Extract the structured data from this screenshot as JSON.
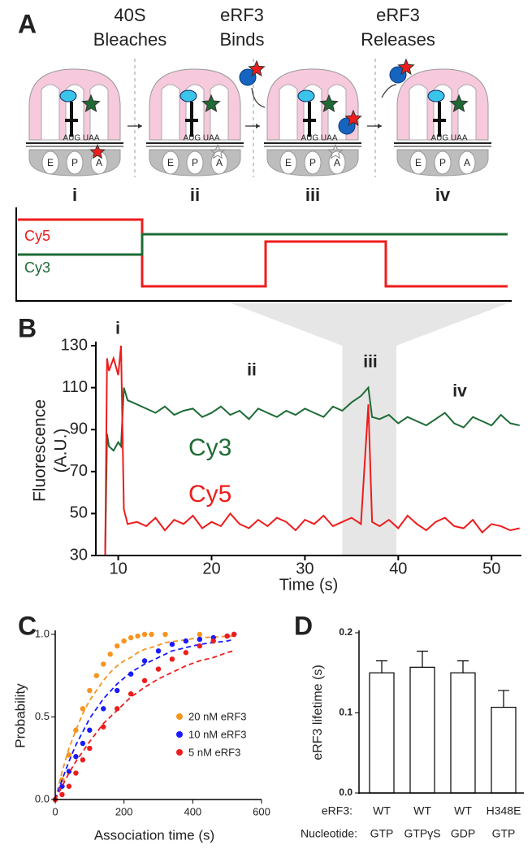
{
  "panel_labels": [
    "A",
    "B",
    "C",
    "D"
  ],
  "schematic": {
    "steps": [
      [
        "40S",
        "Bleaches"
      ],
      [
        "eRF3",
        "Binds"
      ],
      [
        "eRF3",
        "Releases"
      ]
    ],
    "states": [
      "i",
      "ii",
      "iii",
      "iv"
    ],
    "sites": [
      "E",
      "P",
      "A"
    ],
    "codons": "AUG UAA",
    "traces": [
      "Cy5",
      "Cy3"
    ]
  },
  "chart_data": [
    {
      "type": "line",
      "xlabel": "Time (s)",
      "ylabel": [
        "Fluorescence",
        "(A.U.)"
      ],
      "x": [
        8.6,
        8.8,
        9,
        9.5,
        10,
        10.3,
        10.6,
        11,
        12,
        13,
        14,
        15,
        16,
        17,
        18,
        19,
        20,
        21,
        22,
        23,
        24,
        25,
        26,
        27,
        28,
        29,
        30,
        31,
        32,
        33,
        34,
        35,
        36,
        36.8,
        37.2,
        38,
        39,
        40,
        41,
        42,
        43,
        44,
        45,
        46,
        47,
        48,
        49,
        50,
        51,
        52,
        53
      ],
      "series": [
        {
          "name": "Cy3",
          "color": "#1e6b35",
          "values": [
            30,
            88,
            82,
            80,
            84,
            82,
            110,
            104,
            102,
            100,
            98,
            101,
            97,
            99,
            100,
            96,
            98,
            101,
            97,
            99,
            95,
            100,
            98,
            96,
            99,
            97,
            100,
            98,
            96,
            101,
            99,
            103,
            106,
            110,
            96,
            95,
            97,
            93,
            96,
            94,
            92,
            95,
            98,
            93,
            91,
            96,
            94,
            92,
            97,
            93,
            92
          ]
        },
        {
          "name": "Cy5",
          "color": "#ee1c1c",
          "values": [
            30,
            124,
            118,
            124,
            116,
            130,
            52,
            45,
            46,
            44,
            48,
            42,
            47,
            45,
            49,
            43,
            46,
            44,
            50,
            45,
            43,
            47,
            44,
            48,
            46,
            42,
            47,
            45,
            49,
            44,
            46,
            48,
            45,
            102,
            46,
            44,
            47,
            43,
            49,
            45,
            42,
            46,
            48,
            44,
            43,
            47,
            41,
            45,
            44,
            42,
            43
          ]
        }
      ],
      "xlim": [
        7.6,
        53.2
      ],
      "xticks": [
        10,
        20,
        30,
        40,
        50
      ],
      "ylim": [
        30,
        130
      ],
      "yticks": [
        30,
        50,
        70,
        90,
        110,
        130
      ],
      "highlight_x": [
        34,
        39.8
      ],
      "annotations": [
        "i",
        "ii",
        "iii",
        "iv"
      ]
    },
    {
      "type": "scatter",
      "xlabel": "Association time (s)",
      "ylabel": "Probability",
      "xlim": [
        0,
        600
      ],
      "xticks": [
        0,
        200,
        400,
        600
      ],
      "ylim": [
        0,
        1
      ],
      "yticks": [
        {
          "value": 0,
          "label": "0.0"
        },
        {
          "value": 0.5,
          "label": "0.5"
        },
        {
          "value": 1,
          "label": "1.0"
        }
      ],
      "series": [
        {
          "name": "20 nM eRF3",
          "color": "#f7941d",
          "x": [
            0,
            20,
            40,
            60,
            80,
            100,
            120,
            140,
            160,
            180,
            200,
            220,
            240,
            260,
            280,
            320,
            420,
            520
          ],
          "values": [
            0,
            0.12,
            0.27,
            0.42,
            0.55,
            0.66,
            0.75,
            0.82,
            0.88,
            0.93,
            0.96,
            0.98,
            0.99,
            1.0,
            1.0,
            1.0,
            1.0,
            1.0
          ],
          "fit": [
            0,
            0.17,
            0.31,
            0.42,
            0.52,
            0.6,
            0.66,
            0.72,
            0.77,
            0.81,
            0.84,
            0.86,
            0.89,
            0.91,
            0.92,
            0.95,
            0.98,
            0.99
          ]
        },
        {
          "name": "10 nM eRF3",
          "color": "#1a1aff",
          "x": [
            0,
            20,
            40,
            60,
            80,
            100,
            140,
            180,
            220,
            260,
            300,
            340,
            380,
            420,
            460,
            500,
            520
          ],
          "values": [
            0,
            0.08,
            0.17,
            0.26,
            0.34,
            0.42,
            0.55,
            0.66,
            0.76,
            0.84,
            0.9,
            0.94,
            0.96,
            0.97,
            0.98,
            0.99,
            1.0
          ],
          "fit": [
            0,
            0.12,
            0.23,
            0.33,
            0.41,
            0.49,
            0.61,
            0.7,
            0.77,
            0.82,
            0.86,
            0.9,
            0.92,
            0.94,
            0.95,
            0.96,
            0.97
          ]
        },
        {
          "name": "5 nM eRF3",
          "color": "#ee1c1c",
          "x": [
            0,
            20,
            40,
            60,
            80,
            100,
            140,
            180,
            220,
            260,
            300,
            340,
            380,
            420,
            460,
            500,
            520
          ],
          "values": [
            0,
            0.03,
            0.08,
            0.16,
            0.24,
            0.31,
            0.44,
            0.55,
            0.64,
            0.72,
            0.79,
            0.85,
            0.89,
            0.93,
            0.96,
            0.99,
            1.0
          ],
          "fit": [
            0,
            0.08,
            0.16,
            0.23,
            0.29,
            0.35,
            0.46,
            0.54,
            0.62,
            0.68,
            0.73,
            0.77,
            0.81,
            0.84,
            0.86,
            0.89,
            0.9
          ]
        }
      ]
    },
    {
      "type": "bar",
      "ylabel": "eRF3 lifetime (s)",
      "category_titles": [
        "eRF3:",
        "Nucleotide:"
      ],
      "categories": [
        "WT",
        "WT",
        "WT",
        "H348E"
      ],
      "nucleotides": [
        "GTP",
        "GTPγS",
        "GDP",
        "GTP"
      ],
      "values": [
        0.15,
        0.157,
        0.15,
        0.107
      ],
      "errors": [
        0.015,
        0.02,
        0.015,
        0.021
      ],
      "color": "#ffffff",
      "ylim": [
        0,
        0.2
      ],
      "yticks": [
        {
          "value": 0,
          "label": "0.0"
        },
        {
          "value": 0.1,
          "label": "0.1"
        },
        {
          "value": 0.2,
          "label": "0.2"
        }
      ]
    }
  ]
}
